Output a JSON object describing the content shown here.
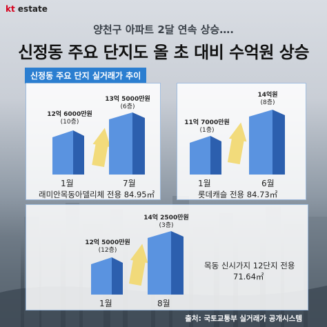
{
  "brand": {
    "kt": "kt",
    "estate": "estate"
  },
  "header": {
    "subtitle": "양천구 아파트 2달 연속 상승….",
    "title": "신정동 주요 단지도 올 초 대비 수억원 상승"
  },
  "section_tag": "신정동 주요 단지 실거래가 추이",
  "cards": [
    {
      "before": {
        "price": "12억 6000만원",
        "floor": "(10층)",
        "month": "1월"
      },
      "after": {
        "price": "13억 5000만원",
        "floor": "(6층)",
        "month": "7월"
      },
      "name": "래미안목동아델리체 전용 84.95㎡"
    },
    {
      "before": {
        "price": "11억 7000만원",
        "floor": "(1층)",
        "month": "1월"
      },
      "after": {
        "price": "14억원",
        "floor": "(8층)",
        "month": "6월"
      },
      "name": "롯데캐슬 전용 84.73㎡"
    },
    {
      "before": {
        "price": "12억 5000만원",
        "floor": "(12층)",
        "month": "1월"
      },
      "after": {
        "price": "14억 2500만원",
        "floor": "(3층)",
        "month": "8월"
      },
      "name_line1": "목동 신시가지 12단지 전용",
      "name_line2": "71.64㎡"
    }
  ],
  "source": "출처: 국토교통부 실거래가 공개시스템",
  "colors": {
    "building_front": "#3f7fd6",
    "building_side": "#2c5fae",
    "arrow": "#f2d86e",
    "tag": "#2b7ed0"
  }
}
